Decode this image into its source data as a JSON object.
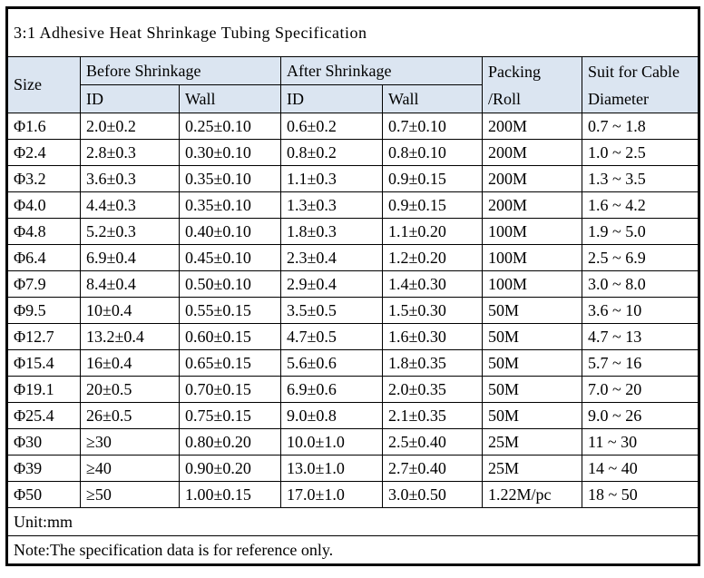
{
  "title": "3:1 Adhesive Heat Shrinkage Tubing Specification",
  "table": {
    "headers": {
      "size": "Size",
      "before_shrinkage": "Before Shrinkage",
      "after_shrinkage": "After Shrinkage",
      "before_id": "ID",
      "before_wall": "Wall",
      "after_id": "ID",
      "after_wall": "Wall",
      "packing_line1": "Packing",
      "packing_line2": "/Roll",
      "suit_line1": "Suit for Cable",
      "suit_line2": "Diameter"
    },
    "column_keys": [
      "size",
      "before-id",
      "before-wall",
      "after-id",
      "after-wall",
      "packing-per-roll",
      "cable-diameter-range"
    ],
    "rows": [
      [
        "Φ1.6",
        "2.0±0.2",
        "0.25±0.10",
        "0.6±0.2",
        "0.7±0.10",
        "200M",
        "0.7 ~ 1.8"
      ],
      [
        "Φ2.4",
        "2.8±0.3",
        "0.30±0.10",
        "0.8±0.2",
        "0.8±0.10",
        "200M",
        "1.0 ~ 2.5"
      ],
      [
        "Φ3.2",
        "3.6±0.3",
        "0.35±0.10",
        "1.1±0.3",
        "0.9±0.15",
        "200M",
        "1.3 ~ 3.5"
      ],
      [
        "Φ4.0",
        "4.4±0.3",
        "0.35±0.10",
        "1.3±0.3",
        "0.9±0.15",
        "200M",
        "1.6 ~ 4.2"
      ],
      [
        "Φ4.8",
        "5.2±0.3",
        "0.40±0.10",
        "1.8±0.3",
        "1.1±0.20",
        "100M",
        "1.9 ~ 5.0"
      ],
      [
        "Φ6.4",
        "6.9±0.4",
        "0.45±0.10",
        "2.3±0.4",
        "1.2±0.20",
        "100M",
        "2.5 ~ 6.9"
      ],
      [
        "Φ7.9",
        "8.4±0.4",
        "0.50±0.10",
        "2.9±0.4",
        "1.4±0.30",
        "100M",
        "3.0 ~ 8.0"
      ],
      [
        "Φ9.5",
        "10±0.4",
        "0.55±0.15",
        "3.5±0.5",
        "1.5±0.30",
        "50M",
        "3.6 ~ 10"
      ],
      [
        "Φ12.7",
        "13.2±0.4",
        "0.60±0.15",
        "4.7±0.5",
        "1.6±0.30",
        "50M",
        "4.7 ~ 13"
      ],
      [
        "Φ15.4",
        "16±0.4",
        "0.65±0.15",
        "5.6±0.6",
        "1.8±0.35",
        "50M",
        "5.7 ~ 16"
      ],
      [
        "Φ19.1",
        "20±0.5",
        "0.70±0.15",
        "6.9±0.6",
        "2.0±0.35",
        "50M",
        "7.0 ~ 20"
      ],
      [
        "Φ25.4",
        "26±0.5",
        "0.75±0.15",
        "9.0±0.8",
        "2.1±0.35",
        "50M",
        "9.0 ~ 26"
      ],
      [
        "Φ30",
        "≥30",
        "0.80±0.20",
        "10.0±1.0",
        "2.5±0.40",
        "25M",
        "11 ~ 30"
      ],
      [
        "Φ39",
        "≥40",
        "0.90±0.20",
        "13.0±1.0",
        "2.7±0.40",
        "25M",
        "14 ~ 40"
      ],
      [
        "Φ50",
        "≥50",
        "1.00±0.15",
        "17.0±1.0",
        "3.0±0.50",
        "1.22M/pc",
        "18 ~ 50"
      ]
    ],
    "footer": {
      "unit": "Unit:mm",
      "note": "Note:The specification data is for reference only."
    }
  },
  "colors": {
    "header_bg": "#dbe5f1",
    "border": "#000000",
    "background": "#ffffff"
  }
}
